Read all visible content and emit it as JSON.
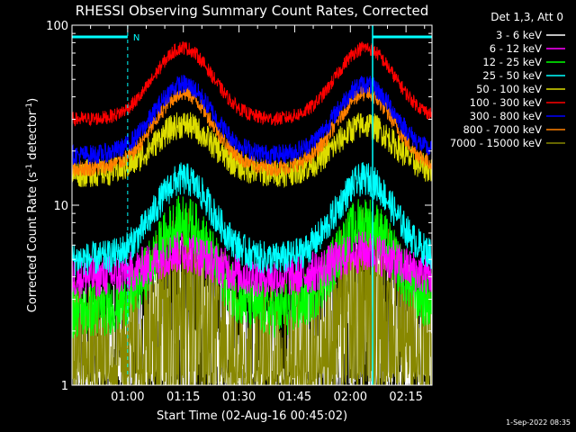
{
  "chart_data": {
    "type": "line",
    "title": "RHESSI Observing Summary Count Rates, Corrected",
    "xlabel": "Start Time (02-Aug-16 00:45:02)",
    "ylabel_main": "Corrected Count Rate (s",
    "ylabel_sup1": "-1",
    "ylabel_mid": " detector",
    "ylabel_sup2": "-1",
    "ylabel_end": ")",
    "yscale": "log",
    "ylim": [
      1,
      100
    ],
    "xlim_minutes": [
      0,
      97
    ],
    "x_ticks": [
      {
        "minute": 15,
        "label": "01:00"
      },
      {
        "minute": 30,
        "label": "01:15"
      },
      {
        "minute": 45,
        "label": "01:30"
      },
      {
        "minute": 60,
        "label": "01:45"
      },
      {
        "minute": 75,
        "label": "02:00"
      },
      {
        "minute": 90,
        "label": "02:15"
      }
    ],
    "y_ticks": [
      {
        "value": 1,
        "label": "1"
      },
      {
        "value": 10,
        "label": "10"
      },
      {
        "value": 100,
        "label": "100"
      }
    ],
    "legend_header": "Det 1,3, Att 0",
    "legend_position": "top-right",
    "night_marker_label": "N",
    "night_intervals": [
      [
        0,
        15
      ],
      [
        81,
        97
      ]
    ],
    "timestamp": "1-Sep-2022 08:35",
    "series": [
      {
        "name": "3 - 6 keV",
        "color": "#ffffff",
        "base": 1.6,
        "peak": 3.2,
        "noise": 0.5
      },
      {
        "name": "6 - 12 keV",
        "color": "#ff00ff",
        "base": 4.0,
        "peak": 5.5,
        "noise": 0.15
      },
      {
        "name": "12 - 25 keV",
        "color": "#00ff00",
        "base": 2.6,
        "peak": 8.0,
        "noise": 0.2
      },
      {
        "name": "25 - 50 keV",
        "color": "#00ffff",
        "base": 5.0,
        "peak": 14.0,
        "noise": 0.12
      },
      {
        "name": "50 - 100 keV",
        "color": "#dddd00",
        "base": 15.0,
        "peak": 28.0,
        "noise": 0.1
      },
      {
        "name": "100 - 300 keV",
        "color": "#ff0000",
        "base": 30.0,
        "peak": 75.0,
        "noise": 0.05
      },
      {
        "name": "300 - 800 keV",
        "color": "#0000ff",
        "base": 19.0,
        "peak": 47.0,
        "noise": 0.07
      },
      {
        "name": "800 - 7000 keV",
        "color": "#ff8000",
        "base": 16.0,
        "peak": 42.0,
        "noise": 0.06
      },
      {
        "name": "7000 - 15000 keV",
        "color": "#888800",
        "base": 1.8,
        "peak": 4.5,
        "noise": 0.45
      }
    ],
    "peaks_minutes": [
      30,
      79
    ],
    "peak_width_minutes": 11
  }
}
